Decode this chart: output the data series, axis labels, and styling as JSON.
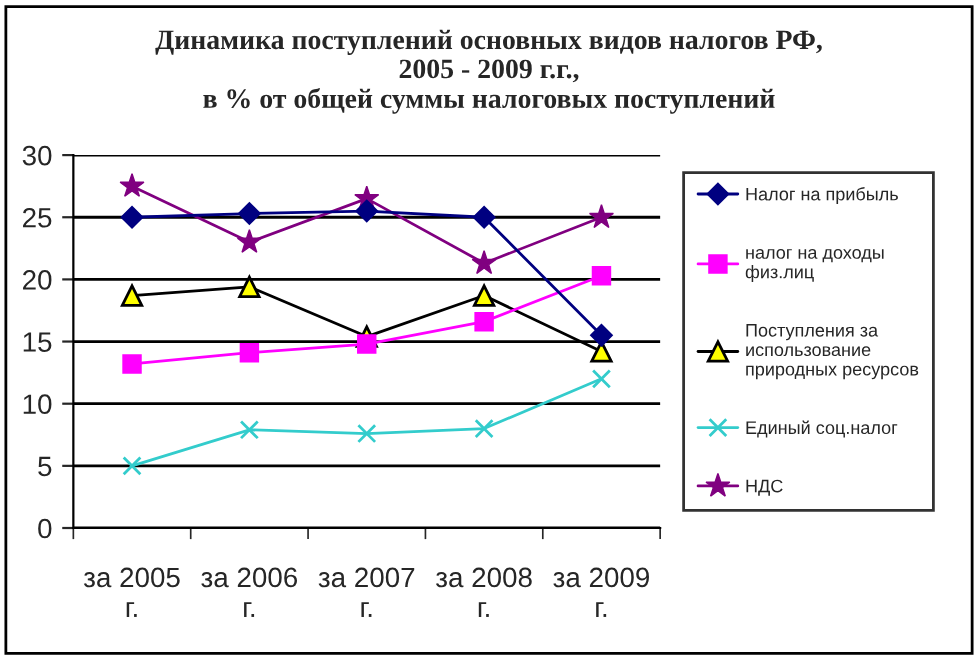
{
  "chart_data": {
    "type": "line",
    "title": "Динамика поступлений основных видов налогов РФ,\n2005 - 2009 г.г.,\nв % от общей суммы налоговых поступлений",
    "categories": [
      "за 2005\nг.",
      "за 2006\nг.",
      "за 2007\nг.",
      "за 2008\nг.",
      "за 2009\nг."
    ],
    "series": [
      {
        "name": "Налог на прибыль",
        "color": "#000080",
        "marker": "diamond",
        "values": [
          25,
          25.3,
          25.5,
          25,
          15.5
        ]
      },
      {
        "name": "налог на доходы\nфиз.лиц",
        "color": "#ff00ff",
        "marker": "square",
        "values": [
          13.2,
          14.1,
          14.8,
          16.6,
          20.3
        ]
      },
      {
        "name": "Поступления за\nиспользование\nприродных ресурсов",
        "color": "#000000",
        "marker": "triangle",
        "values": [
          18.7,
          19.4,
          15.4,
          18.7,
          14.2
        ]
      },
      {
        "name": "Единый соц.налог",
        "color": "#33cccc",
        "marker": "cross",
        "values": [
          5.0,
          7.9,
          7.6,
          8.0,
          12.0
        ]
      },
      {
        "name": "НДС",
        "color": "#800080",
        "marker": "star",
        "values": [
          27.5,
          23,
          26.5,
          21.3,
          25
        ]
      }
    ],
    "ylim": [
      0,
      30
    ],
    "yticks": [
      0,
      5,
      10,
      15,
      20,
      25,
      30
    ],
    "grid": "y",
    "legend": "right"
  }
}
